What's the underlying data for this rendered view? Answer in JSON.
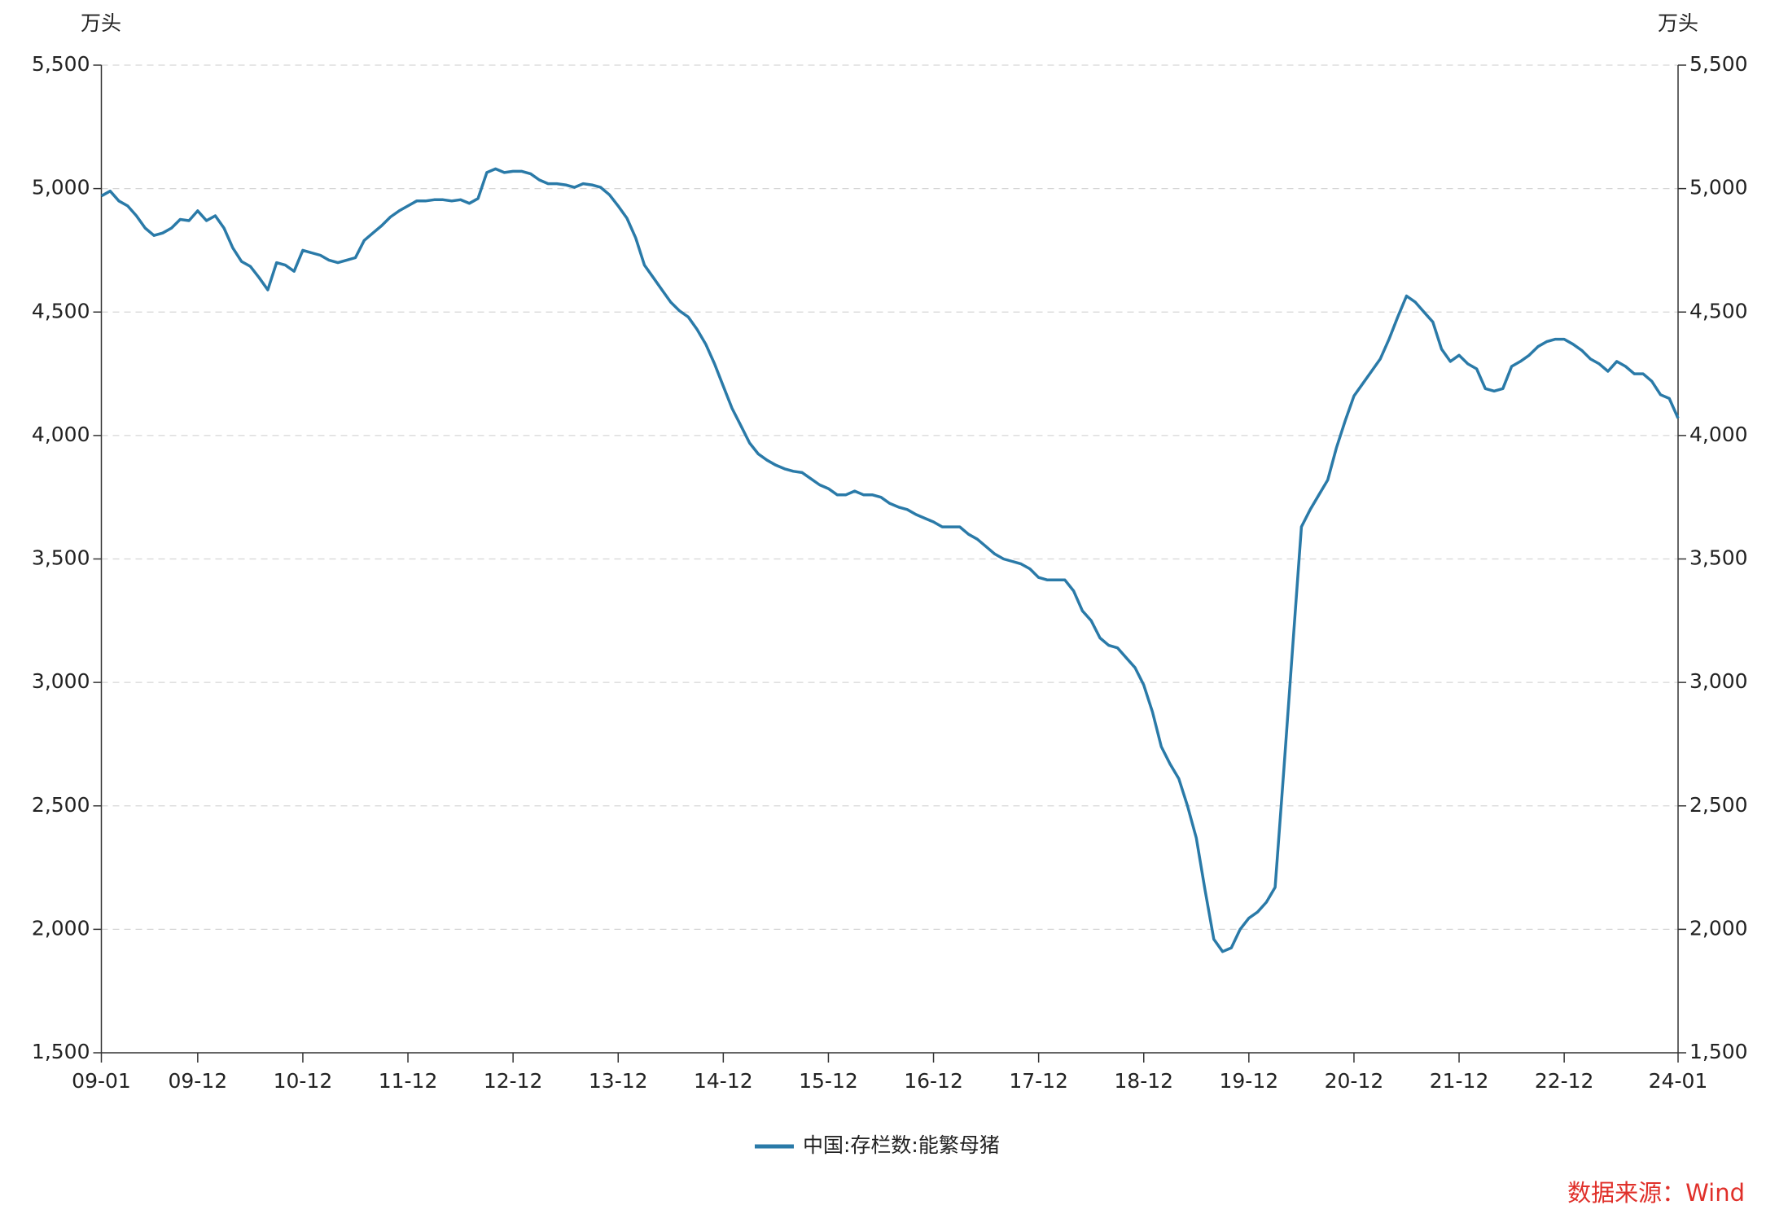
{
  "chart_data": {
    "type": "line",
    "y_label": "万头",
    "y2_label": "万头",
    "categories": [
      "09-01",
      null,
      null,
      null,
      null,
      null,
      null,
      null,
      null,
      null,
      null,
      "09-12",
      null,
      null,
      null,
      null,
      null,
      null,
      null,
      null,
      null,
      null,
      null,
      "10-12",
      null,
      null,
      null,
      null,
      null,
      null,
      null,
      null,
      null,
      null,
      null,
      "11-12",
      null,
      null,
      null,
      null,
      null,
      null,
      null,
      null,
      null,
      null,
      null,
      "12-12",
      null,
      null,
      null,
      null,
      null,
      null,
      null,
      null,
      null,
      null,
      null,
      "13-12",
      null,
      null,
      null,
      null,
      null,
      null,
      null,
      null,
      null,
      null,
      null,
      "14-12",
      null,
      null,
      null,
      null,
      null,
      null,
      null,
      null,
      null,
      null,
      null,
      "15-12",
      null,
      null,
      null,
      null,
      null,
      null,
      null,
      null,
      null,
      null,
      null,
      "16-12",
      null,
      null,
      null,
      null,
      null,
      null,
      null,
      null,
      null,
      null,
      null,
      "17-12",
      null,
      null,
      null,
      null,
      null,
      null,
      null,
      null,
      null,
      null,
      null,
      "18-12",
      null,
      null,
      null,
      null,
      null,
      null,
      null,
      null,
      null,
      null,
      null,
      "19-12",
      null,
      null,
      null,
      null,
      null,
      null,
      null,
      null,
      null,
      null,
      null,
      "20-12",
      null,
      null,
      null,
      null,
      null,
      null,
      null,
      null,
      null,
      null,
      null,
      "21-12",
      null,
      null,
      null,
      null,
      null,
      null,
      null,
      null,
      null,
      null,
      null,
      "22-12",
      null,
      null,
      null,
      null,
      null,
      null,
      null,
      null,
      null,
      null,
      null,
      null,
      "24-01"
    ],
    "series": [
      {
        "name": "中国:存栏数:能繁母猪",
        "color": "#2a7aa8",
        "values": [
          4970,
          4990,
          4950,
          4930,
          4890,
          4840,
          4810,
          4820,
          4840,
          4875,
          4870,
          4910,
          4870,
          4890,
          4840,
          4760,
          4705,
          4685,
          4640,
          4590,
          4700,
          4690,
          4665,
          4750,
          4740,
          4730,
          4710,
          4700,
          4710,
          4720,
          4790,
          4820,
          4850,
          4885,
          4910,
          4930,
          4950,
          4950,
          4955,
          4955,
          4950,
          4955,
          4940,
          4960,
          5065,
          5080,
          5065,
          5070,
          5070,
          5060,
          5035,
          5020,
          5020,
          5015,
          5005,
          5020,
          5015,
          5005,
          4975,
          4930,
          4880,
          4800,
          4690,
          4640,
          4590,
          4540,
          4505,
          4480,
          4430,
          4370,
          4290,
          4200,
          4110,
          4040,
          3970,
          3925,
          3900,
          3880,
          3865,
          3855,
          3850,
          3825,
          3800,
          3785,
          3760,
          3760,
          3775,
          3760,
          3760,
          3750,
          3725,
          3710,
          3700,
          3680,
          3665,
          3650,
          3630,
          3630,
          3630,
          3600,
          3580,
          3550,
          3520,
          3500,
          3490,
          3480,
          3460,
          3425,
          3415,
          3415,
          3415,
          3370,
          3290,
          3250,
          3180,
          3150,
          3140,
          3100,
          3060,
          2990,
          2880,
          2740,
          2670,
          2610,
          2500,
          2370,
          2160,
          1960,
          1910,
          1925,
          2000,
          2045,
          2070,
          2110,
          2170,
          2650,
          3140,
          3630,
          3700,
          3760,
          3820,
          3950,
          4060,
          4160,
          4210,
          4260,
          4310,
          4390,
          4480,
          4565,
          4540,
          4500,
          4460,
          4350,
          4300,
          4325,
          4290,
          4270,
          4190,
          4180,
          4190,
          4280,
          4300,
          4325,
          4360,
          4380,
          4390,
          4390,
          4370,
          4345,
          4310,
          4290,
          4260,
          4300,
          4280,
          4250,
          4250,
          4220,
          4165,
          4150,
          4070
        ]
      }
    ],
    "ylim": [
      1500,
      5500
    ],
    "yticks": [
      {
        "value": 1500,
        "label": "1,500"
      },
      {
        "value": 2000,
        "label": "2,000"
      },
      {
        "value": 2500,
        "label": "2,500"
      },
      {
        "value": 3000,
        "label": "3,000"
      },
      {
        "value": 3500,
        "label": "3,500"
      },
      {
        "value": 4000,
        "label": "4,000"
      },
      {
        "value": 4500,
        "label": "4,500"
      },
      {
        "value": 5000,
        "label": "5,000"
      },
      {
        "value": 5500,
        "label": "5,500"
      }
    ],
    "y2lim": [
      1500,
      5500
    ],
    "y2ticks": [
      {
        "value": 1500,
        "label": "1,500"
      },
      {
        "value": 2000,
        "label": "2,000"
      },
      {
        "value": 2500,
        "label": "2,500"
      },
      {
        "value": 3000,
        "label": "3,000"
      },
      {
        "value": 3500,
        "label": "3,500"
      },
      {
        "value": 4000,
        "label": "4,000"
      },
      {
        "value": 4500,
        "label": "4,500"
      },
      {
        "value": 5000,
        "label": "5,000"
      },
      {
        "value": 5500,
        "label": "5,500"
      }
    ],
    "grid": true,
    "legend": "bottom",
    "source": "数据来源：Wind"
  }
}
